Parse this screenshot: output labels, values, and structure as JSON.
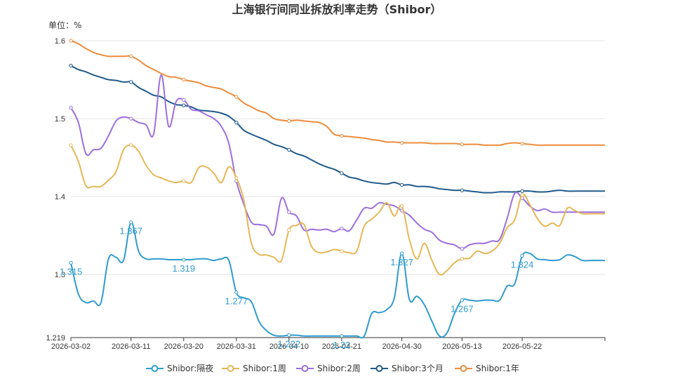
{
  "chart_data": {
    "type": "line",
    "title": "上海银行间同业拆放利率走势（Shibor）",
    "unit_label": "单位：%",
    "xlabel": "",
    "ylabel": "",
    "ylim": [
      1.219,
      1.6
    ],
    "y_ticks": [
      "1.219",
      "1.3",
      "1.4",
      "1.5",
      "1.6"
    ],
    "x_ticks": [
      "2026-03-02",
      "2026-03-11",
      "2026-03-20",
      "2026-03-31",
      "2026-04-10",
      "2026-04-21",
      "2026-04-30",
      "2026-05-13",
      "2026-05-22"
    ],
    "grid": true,
    "legend_position": "bottom-center",
    "series": [
      {
        "name": "Shibor:隔夜",
        "color": "#2f9bcf",
        "x": [
          0,
          1,
          2,
          3,
          4,
          5,
          6,
          7,
          8,
          9,
          10,
          11,
          12,
          13,
          14,
          15,
          16,
          17,
          18,
          19,
          20,
          21,
          22,
          23,
          24,
          25,
          26,
          27,
          28,
          29,
          30,
          31,
          32,
          33,
          34,
          35,
          36,
          37,
          38,
          39,
          40,
          41,
          42,
          43,
          44,
          45,
          46,
          47,
          48,
          49,
          50,
          51,
          52,
          53,
          54,
          55,
          56,
          57,
          58,
          59,
          60,
          61,
          62,
          63,
          64,
          65,
          66,
          67,
          68,
          69,
          70,
          71
        ],
        "values": [
          1.315,
          1.275,
          1.264,
          1.266,
          1.264,
          1.32,
          1.322,
          1.318,
          1.367,
          1.33,
          1.32,
          1.32,
          1.32,
          1.319,
          1.319,
          1.319,
          1.319,
          1.32,
          1.32,
          1.318,
          1.32,
          1.318,
          1.277,
          1.27,
          1.265,
          1.24,
          1.228,
          1.222,
          1.221,
          1.222,
          1.222,
          1.221,
          1.221,
          1.221,
          1.221,
          1.221,
          1.221,
          1.221,
          1.221,
          1.221,
          1.25,
          1.251,
          1.255,
          1.27,
          1.327,
          1.268,
          1.272,
          1.261,
          1.24,
          1.221,
          1.225,
          1.25,
          1.267,
          1.267,
          1.266,
          1.267,
          1.267,
          1.267,
          1.285,
          1.288,
          1.324,
          1.327,
          1.32,
          1.319,
          1.318,
          1.319,
          1.325,
          1.323,
          1.318,
          1.318,
          1.318,
          1.318
        ],
        "labels": [
          {
            "i": 0,
            "text": "1.315"
          },
          {
            "i": 8,
            "text": "1.367"
          },
          {
            "i": 15,
            "text": "1.319"
          },
          {
            "i": 22,
            "text": "1.277"
          },
          {
            "i": 29,
            "text": "1.222"
          },
          {
            "i": 36,
            "text": "1.22"
          },
          {
            "i": 44,
            "text": "1.327"
          },
          {
            "i": 52,
            "text": "1.267"
          },
          {
            "i": 60,
            "text": "1.324"
          }
        ]
      },
      {
        "name": "Shibor:1周",
        "color": "#e6b756",
        "x": [
          0,
          1,
          2,
          3,
          4,
          5,
          6,
          7,
          8,
          9,
          10,
          11,
          12,
          13,
          14,
          15,
          16,
          17,
          18,
          19,
          20,
          21,
          22,
          23,
          24,
          25,
          26,
          27,
          28,
          29,
          30,
          31,
          32,
          33,
          34,
          35,
          36,
          37,
          38,
          39,
          40,
          41,
          42,
          43,
          44,
          45,
          46,
          47,
          48,
          49,
          50,
          51,
          52,
          53,
          54,
          55,
          56,
          57,
          58,
          59,
          60,
          61,
          62,
          63,
          64,
          65,
          66,
          67,
          68,
          69,
          70,
          71
        ],
        "values": [
          1.466,
          1.445,
          1.414,
          1.413,
          1.413,
          1.421,
          1.432,
          1.46,
          1.466,
          1.458,
          1.44,
          1.428,
          1.424,
          1.42,
          1.418,
          1.42,
          1.418,
          1.437,
          1.438,
          1.43,
          1.418,
          1.438,
          1.424,
          1.395,
          1.34,
          1.326,
          1.325,
          1.322,
          1.318,
          1.357,
          1.363,
          1.364,
          1.336,
          1.328,
          1.329,
          1.332,
          1.33,
          1.328,
          1.33,
          1.362,
          1.371,
          1.38,
          1.392,
          1.375,
          1.388,
          1.345,
          1.32,
          1.34,
          1.318,
          1.3,
          1.305,
          1.315,
          1.32,
          1.321,
          1.33,
          1.327,
          1.33,
          1.34,
          1.36,
          1.37,
          1.402,
          1.39,
          1.372,
          1.362,
          1.366,
          1.363,
          1.385,
          1.382,
          1.378,
          1.378,
          1.378,
          1.378
        ],
        "labels": []
      },
      {
        "name": "Shibor:2周",
        "color": "#9b6fe0",
        "x": [
          0,
          1,
          2,
          3,
          4,
          5,
          6,
          7,
          8,
          9,
          10,
          11,
          12,
          13,
          14,
          15,
          16,
          17,
          18,
          19,
          20,
          21,
          22,
          23,
          24,
          25,
          26,
          27,
          28,
          29,
          30,
          31,
          32,
          33,
          34,
          35,
          36,
          37,
          38,
          39,
          40,
          41,
          42,
          43,
          44,
          45,
          46,
          47,
          48,
          49,
          50,
          51,
          52,
          53,
          54,
          55,
          56,
          57,
          58,
          59,
          60,
          61,
          62,
          63,
          64,
          65,
          66,
          67,
          68,
          69,
          70,
          71
        ],
        "values": [
          1.514,
          1.495,
          1.455,
          1.46,
          1.462,
          1.478,
          1.497,
          1.502,
          1.5,
          1.495,
          1.492,
          1.48,
          1.556,
          1.49,
          1.522,
          1.524,
          1.512,
          1.51,
          1.505,
          1.5,
          1.49,
          1.468,
          1.42,
          1.39,
          1.367,
          1.364,
          1.362,
          1.352,
          1.398,
          1.38,
          1.375,
          1.357,
          1.358,
          1.357,
          1.358,
          1.355,
          1.359,
          1.356,
          1.37,
          1.385,
          1.385,
          1.392,
          1.39,
          1.388,
          1.382,
          1.376,
          1.366,
          1.358,
          1.354,
          1.344,
          1.34,
          1.338,
          1.333,
          1.338,
          1.34,
          1.34,
          1.343,
          1.345,
          1.372,
          1.404,
          1.398,
          1.388,
          1.382,
          1.384,
          1.38,
          1.38,
          1.38,
          1.38,
          1.38,
          1.38,
          1.38,
          1.38
        ],
        "labels": []
      },
      {
        "name": "Shibor:3个月",
        "color": "#1f5a8a",
        "x": [
          0,
          1,
          2,
          3,
          4,
          5,
          6,
          7,
          8,
          9,
          10,
          11,
          12,
          13,
          14,
          15,
          16,
          17,
          18,
          19,
          20,
          21,
          22,
          23,
          24,
          25,
          26,
          27,
          28,
          29,
          30,
          31,
          32,
          33,
          34,
          35,
          36,
          37,
          38,
          39,
          40,
          41,
          42,
          43,
          44,
          45,
          46,
          47,
          48,
          49,
          50,
          51,
          52,
          53,
          54,
          55,
          56,
          57,
          58,
          59,
          60,
          61,
          62,
          63,
          64,
          65,
          66,
          67,
          68,
          69,
          70,
          71
        ],
        "values": [
          1.568,
          1.563,
          1.56,
          1.556,
          1.553,
          1.55,
          1.549,
          1.547,
          1.547,
          1.54,
          1.535,
          1.53,
          1.528,
          1.522,
          1.518,
          1.517,
          1.515,
          1.511,
          1.51,
          1.509,
          1.507,
          1.503,
          1.495,
          1.485,
          1.48,
          1.476,
          1.472,
          1.467,
          1.464,
          1.46,
          1.455,
          1.452,
          1.447,
          1.442,
          1.438,
          1.435,
          1.43,
          1.425,
          1.423,
          1.42,
          1.418,
          1.417,
          1.416,
          1.418,
          1.415,
          1.415,
          1.413,
          1.413,
          1.412,
          1.41,
          1.409,
          1.408,
          1.408,
          1.407,
          1.406,
          1.405,
          1.405,
          1.406,
          1.406,
          1.406,
          1.407,
          1.407,
          1.406,
          1.406,
          1.407,
          1.408,
          1.407,
          1.407,
          1.407,
          1.407,
          1.407,
          1.407
        ],
        "labels": []
      },
      {
        "name": "Shibor:1年",
        "color": "#ec8c3c",
        "x": [
          0,
          1,
          2,
          3,
          4,
          5,
          6,
          7,
          8,
          9,
          10,
          11,
          12,
          13,
          14,
          15,
          16,
          17,
          18,
          19,
          20,
          21,
          22,
          23,
          24,
          25,
          26,
          27,
          28,
          29,
          30,
          31,
          32,
          33,
          34,
          35,
          36,
          37,
          38,
          39,
          40,
          41,
          42,
          43,
          44,
          45,
          46,
          47,
          48,
          49,
          50,
          51,
          52,
          53,
          54,
          55,
          56,
          57,
          58,
          59,
          60,
          61,
          62,
          63,
          64,
          65,
          66,
          67,
          68,
          69,
          70,
          71
        ],
        "values": [
          1.6,
          1.596,
          1.59,
          1.585,
          1.582,
          1.58,
          1.58,
          1.58,
          1.58,
          1.575,
          1.568,
          1.563,
          1.558,
          1.554,
          1.553,
          1.55,
          1.548,
          1.546,
          1.542,
          1.54,
          1.538,
          1.533,
          1.528,
          1.52,
          1.515,
          1.51,
          1.507,
          1.5,
          1.498,
          1.497,
          1.498,
          1.497,
          1.496,
          1.495,
          1.49,
          1.48,
          1.478,
          1.477,
          1.476,
          1.475,
          1.473,
          1.472,
          1.47,
          1.47,
          1.469,
          1.469,
          1.469,
          1.469,
          1.468,
          1.468,
          1.468,
          1.468,
          1.467,
          1.467,
          1.467,
          1.466,
          1.466,
          1.466,
          1.468,
          1.469,
          1.468,
          1.467,
          1.466,
          1.466,
          1.466,
          1.466,
          1.466,
          1.466,
          1.466,
          1.466,
          1.466,
          1.466
        ],
        "labels": []
      }
    ],
    "marker_indices": [
      0,
      8,
      15,
      22,
      29,
      36,
      44,
      52,
      60
    ]
  }
}
